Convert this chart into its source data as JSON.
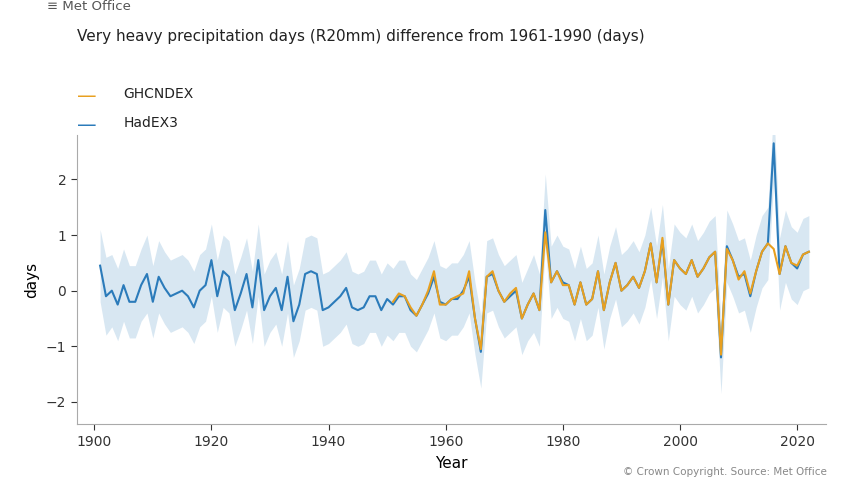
{
  "title": "Very heavy precipitation days (R20mm) difference from 1961-1990 (days)",
  "xlabel": "Year",
  "ylabel": "days",
  "xlim": [
    1897,
    2025
  ],
  "ylim": [
    -2.4,
    2.8
  ],
  "yticks": [
    -2,
    -1,
    0,
    1,
    2
  ],
  "xticks": [
    1900,
    1920,
    1940,
    1960,
    1980,
    2000,
    2020
  ],
  "hadex3_color": "#2b7bba",
  "ghcndex_color": "#e8a020",
  "shade_color": "#b8d4e8",
  "shade_alpha": 0.55,
  "background_color": "#ffffff",
  "copyright_text": "© Crown Copyright. Source: Met Office",
  "legend_labels": [
    "GHCNDEX",
    "HadEX3"
  ],
  "hadex3_years": [
    1901,
    1902,
    1903,
    1904,
    1905,
    1906,
    1907,
    1908,
    1909,
    1910,
    1911,
    1912,
    1913,
    1914,
    1915,
    1916,
    1917,
    1918,
    1919,
    1920,
    1921,
    1922,
    1923,
    1924,
    1925,
    1926,
    1927,
    1928,
    1929,
    1930,
    1931,
    1932,
    1933,
    1934,
    1935,
    1936,
    1937,
    1938,
    1939,
    1940,
    1941,
    1942,
    1943,
    1944,
    1945,
    1946,
    1947,
    1948,
    1949,
    1950,
    1951,
    1952,
    1953,
    1954,
    1955,
    1956,
    1957,
    1958,
    1959,
    1960,
    1961,
    1962,
    1963,
    1964,
    1965,
    1966,
    1967,
    1968,
    1969,
    1970,
    1971,
    1972,
    1973,
    1974,
    1975,
    1976,
    1977,
    1978,
    1979,
    1980,
    1981,
    1982,
    1983,
    1984,
    1985,
    1986,
    1987,
    1988,
    1989,
    1990,
    1991,
    1992,
    1993,
    1994,
    1995,
    1996,
    1997,
    1998,
    1999,
    2000,
    2001,
    2002,
    2003,
    2004,
    2005,
    2006,
    2007,
    2008,
    2009,
    2010,
    2011,
    2012,
    2013,
    2014,
    2015,
    2016,
    2017,
    2018,
    2019,
    2020,
    2021,
    2022
  ],
  "hadex3_values": [
    0.45,
    -0.1,
    0.0,
    -0.25,
    0.1,
    -0.2,
    -0.2,
    0.1,
    0.3,
    -0.2,
    0.25,
    0.05,
    -0.1,
    -0.05,
    0.0,
    -0.1,
    -0.3,
    0.0,
    0.1,
    0.55,
    -0.1,
    0.35,
    0.25,
    -0.35,
    -0.05,
    0.3,
    -0.3,
    0.55,
    -0.35,
    -0.1,
    0.05,
    -0.35,
    0.25,
    -0.55,
    -0.25,
    0.3,
    0.35,
    0.3,
    -0.35,
    -0.3,
    -0.2,
    -0.1,
    0.05,
    -0.3,
    -0.35,
    -0.3,
    -0.1,
    -0.1,
    -0.35,
    -0.15,
    -0.25,
    -0.1,
    -0.1,
    -0.35,
    -0.45,
    -0.25,
    -0.05,
    0.25,
    -0.2,
    -0.25,
    -0.15,
    -0.15,
    0.0,
    0.25,
    -0.5,
    -1.1,
    0.25,
    0.3,
    0.0,
    -0.2,
    -0.1,
    0.0,
    -0.5,
    -0.25,
    -0.05,
    -0.35,
    1.45,
    0.15,
    0.35,
    0.15,
    0.1,
    -0.25,
    0.15,
    -0.25,
    -0.15,
    0.35,
    -0.35,
    0.15,
    0.5,
    0.0,
    0.1,
    0.25,
    0.05,
    0.35,
    0.85,
    0.15,
    0.9,
    -0.25,
    0.55,
    0.4,
    0.3,
    0.55,
    0.25,
    0.4,
    0.6,
    0.7,
    -1.2,
    0.8,
    0.55,
    0.25,
    0.3,
    -0.1,
    0.35,
    0.7,
    0.85,
    2.65,
    0.3,
    0.8,
    0.5,
    0.4,
    0.65,
    0.7
  ],
  "hadex3_upper": [
    1.1,
    0.6,
    0.65,
    0.4,
    0.75,
    0.45,
    0.45,
    0.75,
    1.0,
    0.45,
    0.9,
    0.7,
    0.55,
    0.6,
    0.65,
    0.55,
    0.35,
    0.65,
    0.75,
    1.2,
    0.55,
    1.0,
    0.9,
    0.3,
    0.6,
    0.95,
    0.35,
    1.2,
    0.3,
    0.55,
    0.7,
    0.3,
    0.9,
    0.1,
    0.4,
    0.95,
    1.0,
    0.95,
    0.3,
    0.35,
    0.45,
    0.55,
    0.7,
    0.35,
    0.3,
    0.35,
    0.55,
    0.55,
    0.3,
    0.5,
    0.4,
    0.55,
    0.55,
    0.3,
    0.2,
    0.4,
    0.6,
    0.9,
    0.45,
    0.4,
    0.5,
    0.5,
    0.65,
    0.9,
    0.15,
    -0.45,
    0.9,
    0.95,
    0.65,
    0.45,
    0.55,
    0.65,
    0.15,
    0.4,
    0.65,
    0.3,
    2.1,
    0.8,
    1.0,
    0.8,
    0.75,
    0.4,
    0.8,
    0.4,
    0.5,
    1.0,
    0.3,
    0.8,
    1.15,
    0.65,
    0.75,
    0.9,
    0.7,
    1.0,
    1.5,
    0.8,
    1.55,
    0.4,
    1.2,
    1.05,
    0.95,
    1.2,
    0.9,
    1.05,
    1.25,
    1.35,
    -0.55,
    1.45,
    1.2,
    0.9,
    0.95,
    0.55,
    1.0,
    1.35,
    1.5,
    3.3,
    0.95,
    1.45,
    1.15,
    1.05,
    1.3,
    1.35
  ],
  "hadex3_lower": [
    -0.2,
    -0.8,
    -0.65,
    -0.9,
    -0.55,
    -0.85,
    -0.85,
    -0.55,
    -0.4,
    -0.85,
    -0.4,
    -0.6,
    -0.75,
    -0.7,
    -0.65,
    -0.75,
    -0.95,
    -0.65,
    -0.55,
    -0.1,
    -0.75,
    -0.3,
    -0.4,
    -1.0,
    -0.7,
    -0.35,
    -0.95,
    -0.1,
    -1.0,
    -0.75,
    -0.6,
    -1.0,
    -0.4,
    -1.2,
    -0.9,
    -0.35,
    -0.3,
    -0.35,
    -1.0,
    -0.95,
    -0.85,
    -0.75,
    -0.6,
    -0.95,
    -1.0,
    -0.95,
    -0.75,
    -0.75,
    -1.0,
    -0.8,
    -0.9,
    -0.75,
    -0.75,
    -1.0,
    -1.1,
    -0.9,
    -0.7,
    -0.4,
    -0.85,
    -0.9,
    -0.8,
    -0.8,
    -0.65,
    -0.4,
    -1.15,
    -1.75,
    -0.4,
    -0.35,
    -0.65,
    -0.85,
    -0.75,
    -0.65,
    -1.15,
    -0.9,
    -0.75,
    -1.0,
    0.8,
    -0.5,
    -0.3,
    -0.5,
    -0.55,
    -0.9,
    -0.5,
    -0.9,
    -0.8,
    -0.3,
    -1.05,
    -0.5,
    -0.15,
    -0.65,
    -0.55,
    -0.4,
    -0.6,
    -0.3,
    0.2,
    -0.5,
    0.25,
    -0.9,
    -0.1,
    -0.25,
    -0.35,
    -0.1,
    -0.4,
    -0.25,
    -0.05,
    0.05,
    -1.85,
    0.15,
    -0.1,
    -0.4,
    -0.35,
    -0.75,
    -0.3,
    0.05,
    0.2,
    2.0,
    -0.35,
    0.15,
    -0.15,
    -0.25,
    0.0,
    0.05
  ],
  "ghcndex_years": [
    1951,
    1952,
    1953,
    1954,
    1955,
    1956,
    1957,
    1958,
    1959,
    1960,
    1961,
    1962,
    1963,
    1964,
    1965,
    1966,
    1967,
    1968,
    1969,
    1970,
    1971,
    1972,
    1973,
    1974,
    1975,
    1976,
    1977,
    1978,
    1979,
    1980,
    1981,
    1982,
    1983,
    1984,
    1985,
    1986,
    1987,
    1988,
    1989,
    1990,
    1991,
    1992,
    1993,
    1994,
    1995,
    1996,
    1997,
    1998,
    1999,
    2000,
    2001,
    2002,
    2003,
    2004,
    2005,
    2006,
    2007,
    2008,
    2009,
    2010,
    2011,
    2012,
    2013,
    2014,
    2015,
    2016,
    2017,
    2018,
    2019,
    2020,
    2021,
    2022
  ],
  "ghcndex_values": [
    -0.2,
    -0.05,
    -0.1,
    -0.3,
    -0.45,
    -0.25,
    0.0,
    0.35,
    -0.25,
    -0.25,
    -0.15,
    -0.1,
    -0.05,
    0.35,
    -0.5,
    -1.05,
    0.25,
    0.35,
    0.0,
    -0.2,
    -0.05,
    0.05,
    -0.5,
    -0.25,
    -0.05,
    -0.35,
    1.05,
    0.15,
    0.35,
    0.1,
    0.1,
    -0.25,
    0.15,
    -0.25,
    -0.15,
    0.35,
    -0.35,
    0.15,
    0.5,
    0.0,
    0.1,
    0.25,
    0.05,
    0.35,
    0.85,
    0.15,
    0.95,
    -0.25,
    0.55,
    0.4,
    0.3,
    0.55,
    0.25,
    0.4,
    0.6,
    0.7,
    -1.15,
    0.75,
    0.55,
    0.2,
    0.35,
    -0.05,
    0.35,
    0.7,
    0.85,
    0.75,
    0.3,
    0.8,
    0.5,
    0.45,
    0.65,
    0.7
  ]
}
